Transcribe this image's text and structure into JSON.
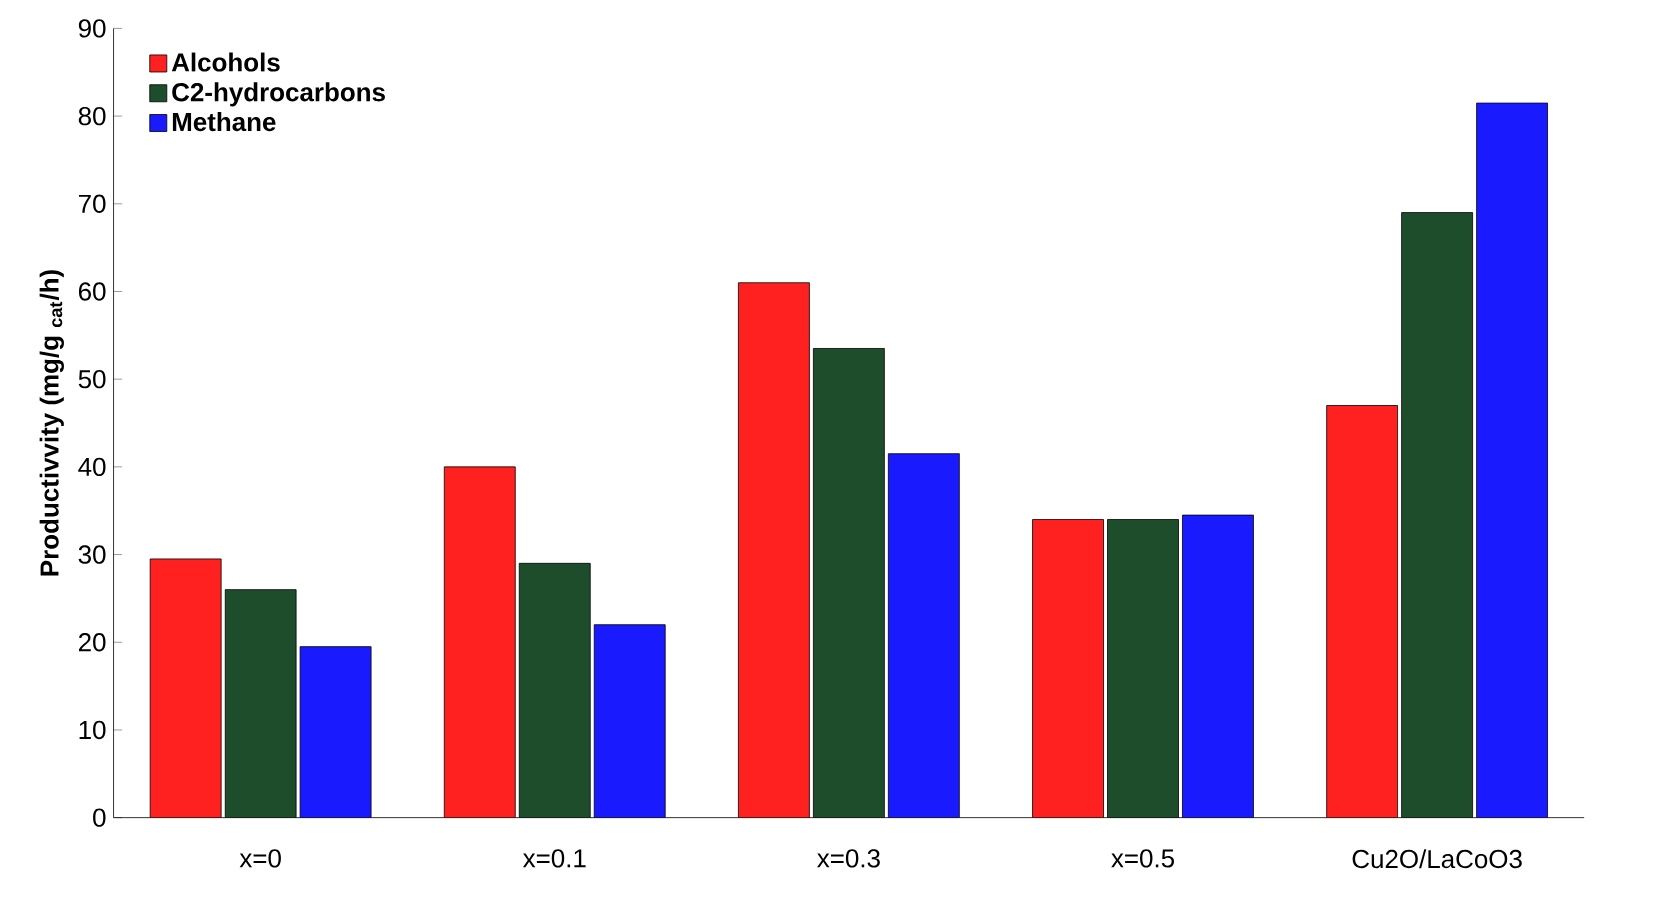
{
  "chart_data": {
    "type": "bar",
    "ylabel": "Productivvity (mg/g $_{cat}$/h)",
    "categories": [
      "x=0",
      "x=0.1",
      "x=0.3",
      "x=0.5",
      "Cu2O/LaCoO3"
    ],
    "series": [
      {
        "name": "Alcohols",
        "color": "#ff2020",
        "values": [
          29.5,
          40,
          61,
          34,
          47
        ]
      },
      {
        "name": "C2-hydrocarbons",
        "color": "#1e4d2b",
        "values": [
          26,
          29,
          53.5,
          34,
          69
        ]
      },
      {
        "name": "Methane",
        "color": "#1a1aff",
        "values": [
          19.5,
          22,
          41.5,
          34.5,
          81.5
        ]
      }
    ],
    "ylim": [
      0,
      90
    ],
    "yticks": [
      0,
      10,
      20,
      30,
      40,
      50,
      60,
      70,
      80,
      90
    ],
    "grid": false,
    "legend": "top left"
  }
}
